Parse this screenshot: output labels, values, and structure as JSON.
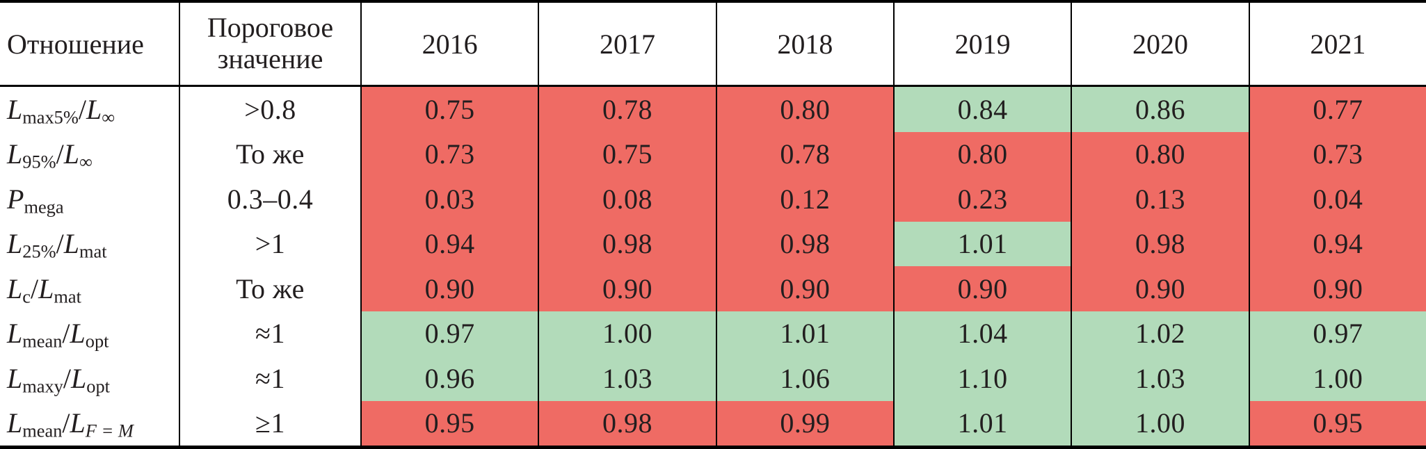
{
  "palette": {
    "fail": "#ef6b64",
    "pass": "#b2dbba",
    "border": "#000000",
    "text": "#221e1f",
    "background": "#ffffff"
  },
  "table": {
    "headers": {
      "ratio": "Отношение",
      "threshold": "Пороговое значение"
    },
    "years": [
      "2016",
      "2017",
      "2018",
      "2019",
      "2020",
      "2021"
    ],
    "rows": [
      {
        "text": "Lmax5%/L∞",
        "label": [
          {
            "t": "L",
            "k": "var"
          },
          {
            "t": "max5%",
            "k": "sub"
          },
          {
            "t": "/",
            "k": "plain"
          },
          {
            "t": "L",
            "k": "var"
          },
          {
            "t": "∞",
            "k": "sub"
          }
        ],
        "threshold": ">0.8",
        "values": [
          "0.75",
          "0.78",
          "0.80",
          "0.84",
          "0.86",
          "0.77"
        ],
        "status": [
          "fail",
          "fail",
          "fail",
          "pass",
          "pass",
          "fail"
        ]
      },
      {
        "text": "L95%/L∞",
        "label": [
          {
            "t": "L",
            "k": "var"
          },
          {
            "t": "95%",
            "k": "sub"
          },
          {
            "t": "/",
            "k": "plain"
          },
          {
            "t": "L",
            "k": "var"
          },
          {
            "t": "∞",
            "k": "sub"
          }
        ],
        "threshold": "То же",
        "values": [
          "0.73",
          "0.75",
          "0.78",
          "0.80",
          "0.80",
          "0.73"
        ],
        "status": [
          "fail",
          "fail",
          "fail",
          "fail",
          "fail",
          "fail"
        ]
      },
      {
        "text": "Pmega",
        "label": [
          {
            "t": "P",
            "k": "var"
          },
          {
            "t": "mega",
            "k": "sub"
          }
        ],
        "threshold": "0.3–0.4",
        "values": [
          "0.03",
          "0.08",
          "0.12",
          "0.23",
          "0.13",
          "0.04"
        ],
        "status": [
          "fail",
          "fail",
          "fail",
          "fail",
          "fail",
          "fail"
        ]
      },
      {
        "text": "L25%/Lmat",
        "label": [
          {
            "t": "L",
            "k": "var"
          },
          {
            "t": "25%",
            "k": "sub"
          },
          {
            "t": "/",
            "k": "plain"
          },
          {
            "t": "L",
            "k": "var"
          },
          {
            "t": "mat",
            "k": "sub"
          }
        ],
        "threshold": ">1",
        "values": [
          "0.94",
          "0.98",
          "0.98",
          "1.01",
          "0.98",
          "0.94"
        ],
        "status": [
          "fail",
          "fail",
          "fail",
          "pass",
          "fail",
          "fail"
        ]
      },
      {
        "text": "Lc/Lmat",
        "label": [
          {
            "t": "L",
            "k": "var"
          },
          {
            "t": "c",
            "k": "sub"
          },
          {
            "t": "/",
            "k": "plain"
          },
          {
            "t": "L",
            "k": "var"
          },
          {
            "t": "mat",
            "k": "sub"
          }
        ],
        "threshold": "То же",
        "values": [
          "0.90",
          "0.90",
          "0.90",
          "0.90",
          "0.90",
          "0.90"
        ],
        "status": [
          "fail",
          "fail",
          "fail",
          "fail",
          "fail",
          "fail"
        ]
      },
      {
        "text": "Lmean/Lopt",
        "label": [
          {
            "t": "L",
            "k": "var"
          },
          {
            "t": "mean",
            "k": "sub"
          },
          {
            "t": "/",
            "k": "plain"
          },
          {
            "t": "L",
            "k": "var"
          },
          {
            "t": "opt",
            "k": "sub"
          }
        ],
        "threshold": "≈1",
        "values": [
          "0.97",
          "1.00",
          "1.01",
          "1.04",
          "1.02",
          "0.97"
        ],
        "status": [
          "pass",
          "pass",
          "pass",
          "pass",
          "pass",
          "pass"
        ]
      },
      {
        "text": "Lmaxy/Lopt",
        "label": [
          {
            "t": "L",
            "k": "var"
          },
          {
            "t": "maxy",
            "k": "sub"
          },
          {
            "t": "/",
            "k": "plain"
          },
          {
            "t": "L",
            "k": "var"
          },
          {
            "t": "opt",
            "k": "sub"
          }
        ],
        "threshold": "≈1",
        "values": [
          "0.96",
          "1.03",
          "1.06",
          "1.10",
          "1.03",
          "1.00"
        ],
        "status": [
          "pass",
          "pass",
          "pass",
          "pass",
          "pass",
          "pass"
        ]
      },
      {
        "text": "Lmean/LF = M",
        "label": [
          {
            "t": "L",
            "k": "var"
          },
          {
            "t": "mean",
            "k": "sub"
          },
          {
            "t": "/",
            "k": "plain"
          },
          {
            "t": "L",
            "k": "var"
          },
          {
            "t": "F = M",
            "k": "subvar"
          }
        ],
        "threshold": "≥1",
        "values": [
          "0.95",
          "0.98",
          "0.99",
          "1.01",
          "1.00",
          "0.95"
        ],
        "status": [
          "fail",
          "fail",
          "fail",
          "pass",
          "pass",
          "fail"
        ]
      }
    ]
  }
}
